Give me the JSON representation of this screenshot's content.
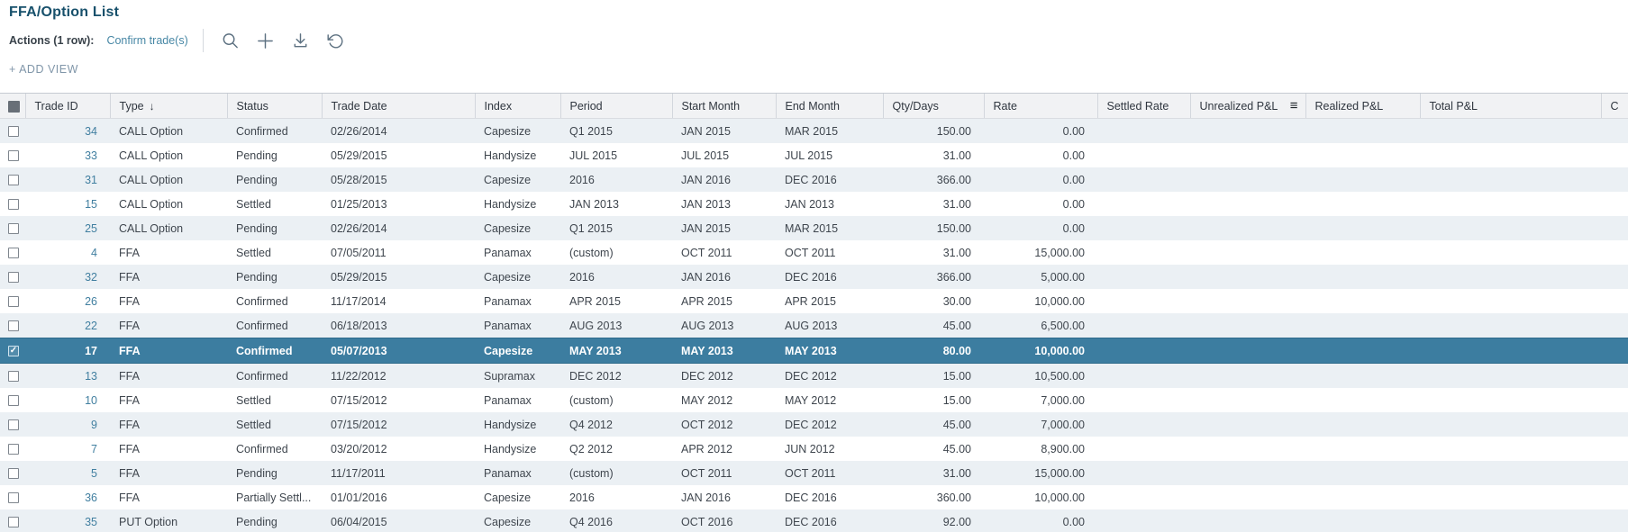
{
  "page": {
    "title": "FFA/Option List"
  },
  "toolbar": {
    "actions_label": "Actions (1 row):",
    "confirm_link": "Confirm trade(s)",
    "icons": [
      "search-icon",
      "add-icon",
      "download-icon",
      "undo-icon"
    ],
    "add_view_label": "+ ADD VIEW"
  },
  "table": {
    "select_all_state": "partial",
    "sorted_column": "Type",
    "sort_direction": "descending",
    "sort_glyph": "↓",
    "column_menu_glyph": "≡",
    "columns": [
      {
        "label": "",
        "name": "select"
      },
      {
        "label": "Trade ID"
      },
      {
        "label": "Type"
      },
      {
        "label": "Status"
      },
      {
        "label": "Trade Date"
      },
      {
        "label": "Index"
      },
      {
        "label": "Period"
      },
      {
        "label": "Start Month"
      },
      {
        "label": "End Month"
      },
      {
        "label": "Qty/Days"
      },
      {
        "label": "Rate"
      },
      {
        "label": "Settled Rate"
      },
      {
        "label": "Unrealized P&L"
      },
      {
        "label": "Realized P&L"
      },
      {
        "label": "Total P&L"
      },
      {
        "label": "C"
      }
    ],
    "rows": [
      {
        "trade_id": "34",
        "type": "CALL Option",
        "status": "Confirmed",
        "trade_date": "02/26/2014",
        "index": "Capesize",
        "period": "Q1 2015",
        "start_month": "JAN 2015",
        "end_month": "MAR 2015",
        "qty_days": "150.00",
        "rate": "0.00",
        "settled_rate": "",
        "unrealized_pl": "",
        "realized_pl": "",
        "total_pl": "",
        "extra": "",
        "selected": false,
        "checked": false
      },
      {
        "trade_id": "33",
        "type": "CALL Option",
        "status": "Pending",
        "trade_date": "05/29/2015",
        "index": "Handysize",
        "period": "JUL 2015",
        "start_month": "JUL 2015",
        "end_month": "JUL 2015",
        "qty_days": "31.00",
        "rate": "0.00",
        "settled_rate": "",
        "unrealized_pl": "",
        "realized_pl": "",
        "total_pl": "",
        "extra": "",
        "selected": false,
        "checked": false
      },
      {
        "trade_id": "31",
        "type": "CALL Option",
        "status": "Pending",
        "trade_date": "05/28/2015",
        "index": "Capesize",
        "period": "2016",
        "start_month": "JAN 2016",
        "end_month": "DEC 2016",
        "qty_days": "366.00",
        "rate": "0.00",
        "settled_rate": "",
        "unrealized_pl": "",
        "realized_pl": "",
        "total_pl": "",
        "extra": "",
        "selected": false,
        "checked": false
      },
      {
        "trade_id": "15",
        "type": "CALL Option",
        "status": "Settled",
        "trade_date": "01/25/2013",
        "index": "Handysize",
        "period": "JAN 2013",
        "start_month": "JAN 2013",
        "end_month": "JAN 2013",
        "qty_days": "31.00",
        "rate": "0.00",
        "settled_rate": "",
        "unrealized_pl": "",
        "realized_pl": "",
        "total_pl": "",
        "extra": "",
        "selected": false,
        "checked": false
      },
      {
        "trade_id": "25",
        "type": "CALL Option",
        "status": "Pending",
        "trade_date": "02/26/2014",
        "index": "Capesize",
        "period": "Q1 2015",
        "start_month": "JAN 2015",
        "end_month": "MAR 2015",
        "qty_days": "150.00",
        "rate": "0.00",
        "settled_rate": "",
        "unrealized_pl": "",
        "realized_pl": "",
        "total_pl": "",
        "extra": "",
        "selected": false,
        "checked": false
      },
      {
        "trade_id": "4",
        "type": "FFA",
        "status": "Settled",
        "trade_date": "07/05/2011",
        "index": "Panamax",
        "period": "(custom)",
        "start_month": "OCT 2011",
        "end_month": "OCT 2011",
        "qty_days": "31.00",
        "rate": "15,000.00",
        "settled_rate": "",
        "unrealized_pl": "",
        "realized_pl": "",
        "total_pl": "",
        "extra": "",
        "selected": false,
        "checked": false
      },
      {
        "trade_id": "32",
        "type": "FFA",
        "status": "Pending",
        "trade_date": "05/29/2015",
        "index": "Capesize",
        "period": "2016",
        "start_month": "JAN 2016",
        "end_month": "DEC 2016",
        "qty_days": "366.00",
        "rate": "5,000.00",
        "settled_rate": "",
        "unrealized_pl": "",
        "realized_pl": "",
        "total_pl": "",
        "extra": "",
        "selected": false,
        "checked": false
      },
      {
        "trade_id": "26",
        "type": "FFA",
        "status": "Confirmed",
        "trade_date": "11/17/2014",
        "index": "Panamax",
        "period": "APR 2015",
        "start_month": "APR 2015",
        "end_month": "APR 2015",
        "qty_days": "30.00",
        "rate": "10,000.00",
        "settled_rate": "",
        "unrealized_pl": "",
        "realized_pl": "",
        "total_pl": "",
        "extra": "",
        "selected": false,
        "checked": false
      },
      {
        "trade_id": "22",
        "type": "FFA",
        "status": "Confirmed",
        "trade_date": "06/18/2013",
        "index": "Panamax",
        "period": "AUG 2013",
        "start_month": "AUG 2013",
        "end_month": "AUG 2013",
        "qty_days": "45.00",
        "rate": "6,500.00",
        "settled_rate": "",
        "unrealized_pl": "",
        "realized_pl": "",
        "total_pl": "",
        "extra": "",
        "selected": false,
        "checked": false
      },
      {
        "trade_id": "17",
        "type": "FFA",
        "status": "Confirmed",
        "trade_date": "05/07/2013",
        "index": "Capesize",
        "period": "MAY 2013",
        "start_month": "MAY 2013",
        "end_month": "MAY 2013",
        "qty_days": "80.00",
        "rate": "10,000.00",
        "settled_rate": "",
        "unrealized_pl": "",
        "realized_pl": "",
        "total_pl": "",
        "extra": "",
        "selected": true,
        "checked": true
      },
      {
        "trade_id": "13",
        "type": "FFA",
        "status": "Confirmed",
        "trade_date": "11/22/2012",
        "index": "Supramax",
        "period": "DEC 2012",
        "start_month": "DEC 2012",
        "end_month": "DEC 2012",
        "qty_days": "15.00",
        "rate": "10,500.00",
        "settled_rate": "",
        "unrealized_pl": "",
        "realized_pl": "",
        "total_pl": "",
        "extra": "",
        "selected": false,
        "checked": false
      },
      {
        "trade_id": "10",
        "type": "FFA",
        "status": "Settled",
        "trade_date": "07/15/2012",
        "index": "Panamax",
        "period": "(custom)",
        "start_month": "MAY 2012",
        "end_month": "MAY 2012",
        "qty_days": "15.00",
        "rate": "7,000.00",
        "settled_rate": "",
        "unrealized_pl": "",
        "realized_pl": "",
        "total_pl": "",
        "extra": "",
        "selected": false,
        "checked": false
      },
      {
        "trade_id": "9",
        "type": "FFA",
        "status": "Settled",
        "trade_date": "07/15/2012",
        "index": "Handysize",
        "period": "Q4 2012",
        "start_month": "OCT 2012",
        "end_month": "DEC 2012",
        "qty_days": "45.00",
        "rate": "7,000.00",
        "settled_rate": "",
        "unrealized_pl": "",
        "realized_pl": "",
        "total_pl": "",
        "extra": "",
        "selected": false,
        "checked": false
      },
      {
        "trade_id": "7",
        "type": "FFA",
        "status": "Confirmed",
        "trade_date": "03/20/2012",
        "index": "Handysize",
        "period": "Q2 2012",
        "start_month": "APR 2012",
        "end_month": "JUN 2012",
        "qty_days": "45.00",
        "rate": "8,900.00",
        "settled_rate": "",
        "unrealized_pl": "",
        "realized_pl": "",
        "total_pl": "",
        "extra": "",
        "selected": false,
        "checked": false
      },
      {
        "trade_id": "5",
        "type": "FFA",
        "status": "Pending",
        "trade_date": "11/17/2011",
        "index": "Panamax",
        "period": "(custom)",
        "start_month": "OCT 2011",
        "end_month": "OCT 2011",
        "qty_days": "31.00",
        "rate": "15,000.00",
        "settled_rate": "",
        "unrealized_pl": "",
        "realized_pl": "",
        "total_pl": "",
        "extra": "",
        "selected": false,
        "checked": false
      },
      {
        "trade_id": "36",
        "type": "FFA",
        "status": "Partially Settl...",
        "trade_date": "01/01/2016",
        "index": "Capesize",
        "period": "2016",
        "start_month": "JAN 2016",
        "end_month": "DEC 2016",
        "qty_days": "360.00",
        "rate": "10,000.00",
        "settled_rate": "",
        "unrealized_pl": "",
        "realized_pl": "",
        "total_pl": "",
        "extra": "",
        "selected": false,
        "checked": false
      },
      {
        "trade_id": "35",
        "type": "PUT Option",
        "status": "Pending",
        "trade_date": "06/04/2015",
        "index": "Capesize",
        "period": "Q4 2016",
        "start_month": "OCT 2016",
        "end_month": "DEC 2016",
        "qty_days": "92.00",
        "rate": "0.00",
        "settled_rate": "",
        "unrealized_pl": "",
        "realized_pl": "",
        "total_pl": "",
        "extra": "",
        "selected": false,
        "checked": false
      }
    ]
  },
  "colors": {
    "title": "#17506b",
    "accent": "#3c7da0",
    "selected_row_bg": "#3c7da0",
    "link": "#417fa0",
    "stripe": "#ebf0f4",
    "header_bg": "#f1f2f4"
  }
}
